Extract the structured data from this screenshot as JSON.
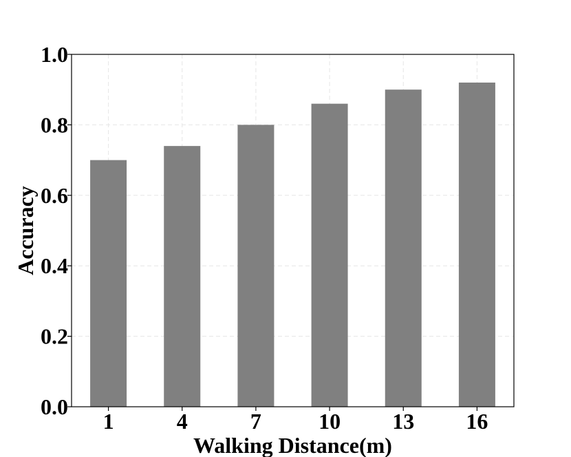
{
  "chart_data": {
    "type": "bar",
    "title": "",
    "xlabel": "Walking Distance(m)",
    "ylabel": "Accuracy",
    "categories": [
      "1",
      "4",
      "7",
      "10",
      "13",
      "16"
    ],
    "values": [
      0.7,
      0.74,
      0.8,
      0.86,
      0.9,
      0.92
    ],
    "ylim": [
      0.0,
      1.0
    ],
    "yticks": [
      "0.0",
      "0.2",
      "0.4",
      "0.6",
      "0.8",
      "1.0"
    ],
    "grid": true,
    "legend": "none",
    "colors": {
      "bar": "#808080",
      "grid": "#e6e6e6",
      "axis": "#000000"
    }
  }
}
